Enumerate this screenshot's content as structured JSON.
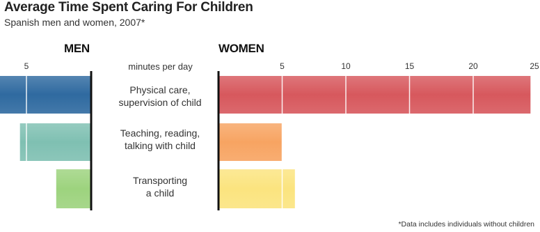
{
  "chart_data": {
    "type": "bar",
    "title": "Average Time Spent Caring For Children",
    "subtitle": "Spanish men and women, 2007*",
    "unit_label": "minutes per day",
    "footnote": "*Data includes individuals without children",
    "categories": [
      {
        "line1": "Physical care,",
        "line2": "supervision of child"
      },
      {
        "line1": "Teaching, reading,",
        "line2": "talking with child"
      },
      {
        "line1": "Transporting",
        "line2": "a child"
      }
    ],
    "panels": {
      "men": {
        "heading": "MEN",
        "ticks": [
          5
        ],
        "values": [
          9.5,
          5.5,
          2.7
        ],
        "colors": [
          "#2f6aa0",
          "#7fc0b2",
          "#9dd37e"
        ]
      },
      "women": {
        "heading": "WOMEN",
        "ticks": [
          5,
          10,
          15,
          20,
          25
        ],
        "values": [
          24.5,
          5,
          6
        ],
        "colors": [
          "#d7585d",
          "#f7a462",
          "#fbe47f"
        ]
      }
    }
  }
}
